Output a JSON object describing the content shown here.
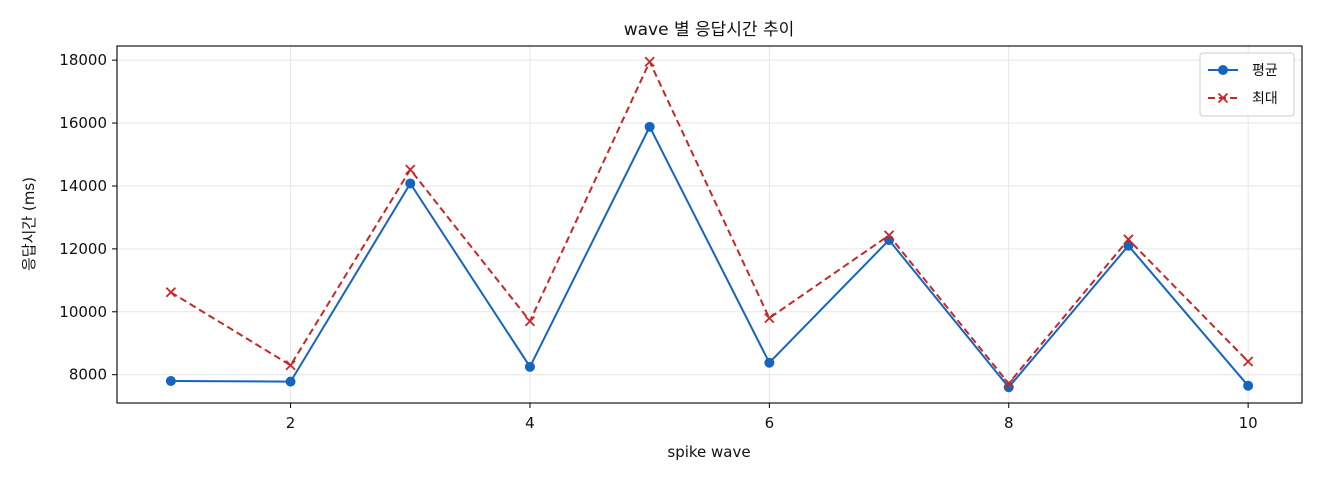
{
  "chart_data": {
    "type": "line",
    "title": "wave 별 응답시간 추이",
    "xlabel": "spike wave",
    "ylabel": "응답시간 (ms)",
    "x": [
      1,
      2,
      3,
      4,
      5,
      6,
      7,
      8,
      9,
      10
    ],
    "xticks": [
      2,
      4,
      6,
      8,
      10
    ],
    "yticks": [
      8000,
      10000,
      12000,
      14000,
      16000,
      18000
    ],
    "xlim": [
      0.55,
      10.45
    ],
    "ylim": [
      7100,
      18450
    ],
    "grid": true,
    "legend_position": "top-right",
    "series": [
      {
        "name": "평균",
        "color": "#1565c0",
        "marker": "circle",
        "linestyle": "solid",
        "values": [
          7800,
          7780,
          14080,
          8250,
          15880,
          8380,
          12280,
          7600,
          12100,
          7650
        ]
      },
      {
        "name": "최대",
        "color": "#c62828",
        "marker": "x",
        "linestyle": "dashed",
        "values": [
          10620,
          8300,
          14520,
          9700,
          17950,
          9800,
          12430,
          7720,
          12300,
          8420
        ]
      }
    ]
  }
}
